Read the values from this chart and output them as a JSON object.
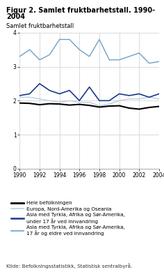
{
  "title_line1": "Figur 2. Samlet fruktbarhetstall. 1990-",
  "title_line2": "2004",
  "ylabel": "Samlet fruktbarhetstall",
  "years": [
    1990,
    1991,
    1992,
    1993,
    1994,
    1995,
    1996,
    1997,
    1998,
    1999,
    2000,
    2001,
    2002,
    2003,
    2004
  ],
  "hele_befolkningen": [
    1.93,
    1.92,
    1.88,
    1.91,
    1.9,
    1.87,
    1.89,
    1.86,
    1.81,
    1.84,
    1.85,
    1.78,
    1.75,
    1.8,
    1.83
  ],
  "europa_nord_am": [
    2.1,
    2.1,
    2.05,
    2.0,
    1.95,
    2.0,
    1.95,
    1.95,
    1.85,
    1.9,
    2.0,
    2.05,
    2.05,
    2.1,
    2.05
  ],
  "asia_under17": [
    2.15,
    2.2,
    2.5,
    2.3,
    2.2,
    2.3,
    2.0,
    2.4,
    2.0,
    2.0,
    2.2,
    2.15,
    2.2,
    2.1,
    2.2
  ],
  "asia_17plus": [
    3.3,
    3.5,
    3.2,
    3.35,
    3.8,
    3.8,
    3.5,
    3.3,
    3.8,
    3.2,
    3.2,
    3.3,
    3.4,
    3.1,
    3.15
  ],
  "color_hele": "#000000",
  "color_europa": "#b8cfe0",
  "color_asia_under17": "#1a3a8a",
  "color_asia_17plus": "#6fa0c8",
  "ylim": [
    0,
    4
  ],
  "yticks": [
    0,
    1,
    2,
    3,
    4
  ],
  "xticks": [
    1990,
    1992,
    1994,
    1996,
    1998,
    2000,
    2002,
    2004
  ],
  "legend_labels": [
    "Hele befolkningen",
    "Europa, Nord-Amerika og Oseania",
    "Asia med Tyrkia, Afrika og Sør-Amerika,\nunder 17 år ved innvandring",
    "Asia med Tyrkia, Afrika og Sør-Amerika,\n17 år og eldre ved innvandring"
  ],
  "source": "Kilde: Befolkningsstatistikk, Statistisk sentralbyrå.",
  "background_color": "#ffffff",
  "grid_color": "#cccccc"
}
